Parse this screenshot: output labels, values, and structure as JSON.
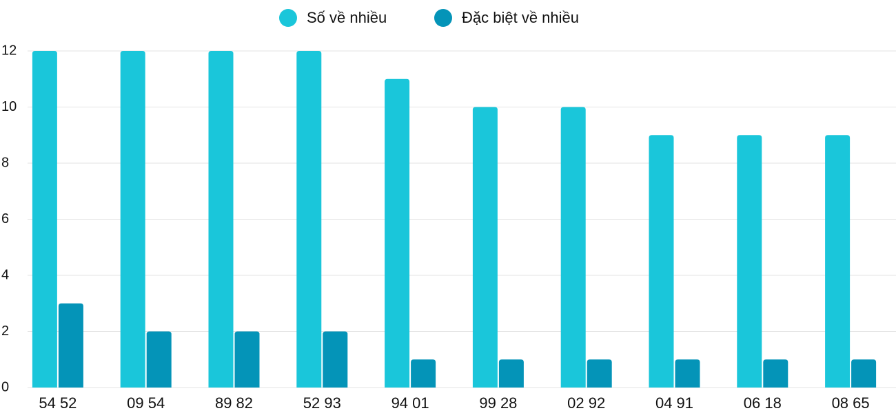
{
  "chart_data": {
    "type": "bar",
    "categories": [
      "54 52",
      "09 54",
      "89 82",
      "52 93",
      "94 01",
      "99 28",
      "02 92",
      "04 91",
      "06 18",
      "08 65"
    ],
    "series": [
      {
        "name": "Số về nhiều",
        "color": "#1ac6da",
        "values": [
          12,
          12,
          12,
          12,
          11,
          10,
          10,
          9,
          9,
          9
        ]
      },
      {
        "name": "Đặc biệt về nhiều",
        "color": "#0494b8",
        "values": [
          3,
          2,
          2,
          2,
          1,
          1,
          1,
          1,
          1,
          1
        ]
      }
    ],
    "ylim": [
      0,
      12
    ],
    "yticks": [
      0,
      2,
      4,
      6,
      8,
      10,
      12
    ],
    "grid": true,
    "legend": "top"
  }
}
